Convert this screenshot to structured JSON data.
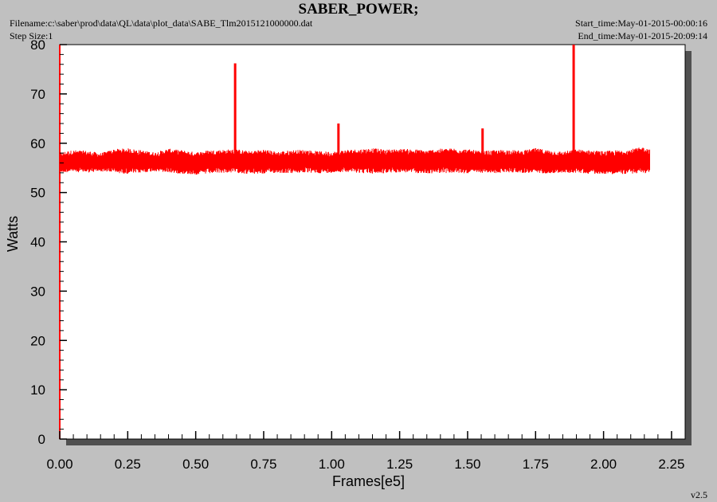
{
  "header": {
    "title": "SABER_POWER;",
    "filename": "Filename:c:\\saber\\prod\\data\\QL\\data\\plot_data\\SABE_Tlm2015121000000.dat",
    "step_size": "Step Size:1",
    "start_time": "Start_time:May-01-2015-00:00:16",
    "end_time": "End_time:May-01-2015-20:09:14",
    "version": "v2.5"
  },
  "colors": {
    "background": "#c0c0c0",
    "plot_area": "#ffffff",
    "series": "#ff0000",
    "shadow": "#505050"
  },
  "chart_data": {
    "type": "line",
    "title": "SABER_POWER;",
    "xlabel": "Frames[e5]",
    "ylabel": "Watts",
    "xlim": [
      0,
      2.3
    ],
    "ylim": [
      0,
      80
    ],
    "xticks": [
      0,
      0.25,
      0.5,
      0.75,
      1.0,
      1.25,
      1.5,
      1.75,
      2.0,
      2.25
    ],
    "xtick_labels": [
      "0.00",
      "0.25",
      "0.50",
      "0.75",
      "1.00",
      "1.25",
      "1.50",
      "1.75",
      "2.00",
      "2.25"
    ],
    "yticks": [
      0,
      10,
      20,
      30,
      40,
      50,
      60,
      70,
      80
    ],
    "ytick_labels": [
      "0",
      "10",
      "20",
      "30",
      "40",
      "50",
      "60",
      "70",
      "80"
    ],
    "grid": false,
    "series": [
      {
        "band": {
          "x": [
            0.0,
            0.05,
            0.1,
            0.15,
            0.2,
            0.25,
            0.3,
            0.35,
            0.4,
            0.45,
            0.5,
            0.55,
            0.6,
            0.65,
            0.7,
            0.75,
            0.8,
            0.85,
            0.9,
            0.95,
            1.0,
            1.05,
            1.1,
            1.15,
            1.2,
            1.25,
            1.3,
            1.35,
            1.4,
            1.45,
            1.5,
            1.55,
            1.6,
            1.65,
            1.7,
            1.75,
            1.8,
            1.85,
            1.9,
            1.95,
            2.0,
            2.05,
            2.1,
            2.15,
            2.17
          ],
          "low": [
            54.0,
            54.2,
            54.0,
            54.3,
            54.0,
            53.8,
            54.0,
            54.3,
            54.0,
            53.8,
            53.6,
            53.8,
            54.0,
            54.0,
            53.7,
            53.8,
            54.0,
            53.9,
            54.0,
            53.9,
            54.0,
            54.2,
            54.0,
            53.8,
            53.9,
            54.1,
            54.0,
            53.8,
            54.0,
            53.9,
            53.9,
            54.0,
            53.9,
            54.1,
            54.0,
            53.9,
            53.9,
            54.0,
            54.0,
            53.8,
            53.8,
            53.7,
            53.8,
            53.9,
            54.0
          ],
          "high": [
            58.2,
            58.6,
            58.5,
            58.0,
            58.8,
            59.0,
            58.6,
            58.2,
            58.9,
            58.6,
            58.2,
            58.6,
            58.7,
            58.8,
            58.4,
            58.8,
            58.3,
            58.6,
            58.7,
            58.4,
            58.3,
            58.7,
            58.8,
            59.0,
            58.7,
            58.9,
            58.8,
            58.6,
            58.9,
            59.0,
            58.8,
            58.4,
            58.6,
            58.7,
            58.5,
            59.0,
            58.6,
            58.3,
            58.8,
            58.6,
            58.4,
            58.6,
            58.8,
            59.3,
            58.8
          ],
          "mid": [
            56.0,
            56.4,
            56.1,
            56.0,
            56.6,
            56.4,
            56.2,
            56.0,
            56.6,
            56.2,
            56.0,
            56.3,
            56.5,
            56.3,
            56.2,
            56.4,
            56.0,
            56.3,
            56.5,
            56.1,
            56.0,
            56.3,
            56.5,
            56.6,
            56.3,
            56.5,
            56.3,
            56.2,
            56.5,
            56.6,
            56.3,
            56.1,
            56.2,
            56.4,
            56.2,
            56.5,
            56.2,
            56.0,
            56.4,
            56.2,
            56.0,
            56.1,
            56.3,
            56.7,
            56.4
          ]
        },
        "spikes": [
          {
            "x": 0.645,
            "y": 76.2
          },
          {
            "x": 1.025,
            "y": 64.0
          },
          {
            "x": 1.555,
            "y": 63.0
          },
          {
            "x": 1.89,
            "y": 80.0
          }
        ]
      }
    ]
  }
}
